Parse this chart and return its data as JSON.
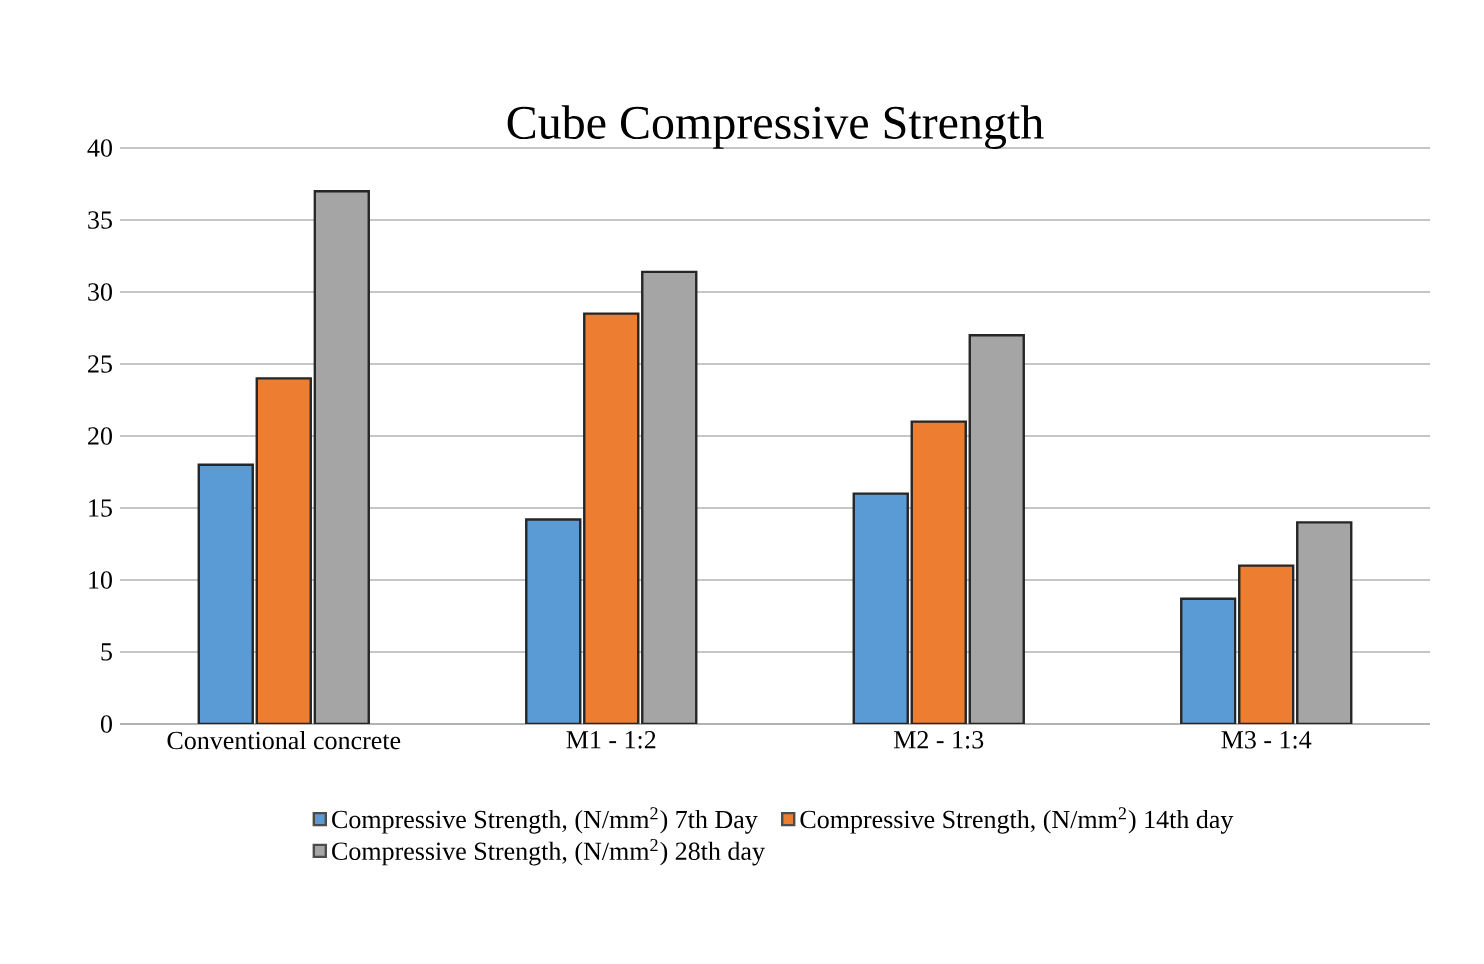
{
  "chart_data": {
    "type": "bar",
    "title": "Cube Compressive Strength",
    "categories": [
      "Conventional concrete",
      "M1 - 1:2",
      "M2 - 1:3",
      "M3 - 1:4"
    ],
    "series": [
      {
        "name": "Compressive Strength, (N/mm$^{2}$) 7th Day",
        "color": "#5b9bd5",
        "values": [
          18,
          14.2,
          16,
          8.7
        ]
      },
      {
        "name": "Compressive Strength, (N/mm$^{2}$) 14th day",
        "color": "#ed7d31",
        "values": [
          24,
          28.5,
          21,
          11
        ]
      },
      {
        "name": "Compressive Strength, (N/mm$^{2}$) 28th day",
        "color": "#a5a5a5",
        "values": [
          37,
          31.4,
          27,
          14
        ]
      }
    ],
    "ylim": [
      0,
      40
    ],
    "yticks": [
      0,
      5,
      10,
      15,
      20,
      25,
      30,
      35,
      40
    ],
    "grid": "y",
    "legend": "bottom"
  }
}
